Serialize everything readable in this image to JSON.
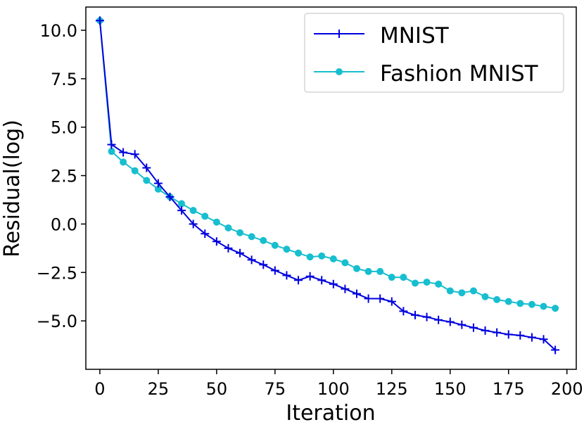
{
  "chart_data": {
    "type": "line",
    "xlabel": "Iteration",
    "ylabel": "Residual(log)",
    "xlim": [
      -6,
      204
    ],
    "ylim": [
      -7.5,
      11.2
    ],
    "xticks": [
      0,
      25,
      50,
      75,
      100,
      125,
      150,
      175,
      200
    ],
    "xtick_labels": [
      "0",
      "25",
      "50",
      "75",
      "100",
      "125",
      "150",
      "175",
      "200"
    ],
    "yticks": [
      -5.0,
      -2.5,
      0.0,
      2.5,
      5.0,
      7.5,
      10.0
    ],
    "ytick_labels": [
      "−5.0",
      "−2.5",
      "0.0",
      "2.5",
      "5.0",
      "7.5",
      "10.0"
    ],
    "grid": false,
    "legend_position": "top-right",
    "series": [
      {
        "name": "MNIST",
        "color": "#0000dd",
        "marker": "plus",
        "x": [
          0,
          5,
          10,
          15,
          20,
          25,
          30,
          35,
          40,
          45,
          50,
          55,
          60,
          65,
          70,
          75,
          80,
          85,
          90,
          95,
          100,
          105,
          110,
          115,
          120,
          125,
          130,
          135,
          140,
          145,
          150,
          155,
          160,
          165,
          170,
          175,
          180,
          185,
          190,
          195
        ],
        "y": [
          10.5,
          4.1,
          3.7,
          3.6,
          2.9,
          2.1,
          1.4,
          0.7,
          0.0,
          -0.5,
          -0.9,
          -1.25,
          -1.5,
          -1.85,
          -2.1,
          -2.4,
          -2.65,
          -2.9,
          -2.7,
          -2.9,
          -3.1,
          -3.35,
          -3.6,
          -3.85,
          -3.85,
          -4.0,
          -4.5,
          -4.7,
          -4.8,
          -4.95,
          -5.05,
          -5.2,
          -5.35,
          -5.5,
          -5.6,
          -5.7,
          -5.75,
          -5.85,
          -5.95,
          -6.5
        ]
      },
      {
        "name": "Fashion MNIST",
        "color": "#17becf",
        "marker": "circle",
        "x": [
          0,
          5,
          10,
          15,
          20,
          25,
          30,
          35,
          40,
          45,
          50,
          55,
          60,
          65,
          70,
          75,
          80,
          85,
          90,
          95,
          100,
          105,
          110,
          115,
          120,
          125,
          130,
          135,
          140,
          145,
          150,
          155,
          160,
          165,
          170,
          175,
          180,
          185,
          190,
          195
        ],
        "y": [
          10.5,
          3.75,
          3.2,
          2.75,
          2.25,
          1.8,
          1.4,
          1.05,
          0.7,
          0.4,
          0.1,
          -0.2,
          -0.45,
          -0.65,
          -0.85,
          -1.1,
          -1.3,
          -1.5,
          -1.7,
          -1.65,
          -1.8,
          -2.0,
          -2.3,
          -2.45,
          -2.45,
          -2.75,
          -2.75,
          -3.05,
          -3.0,
          -3.1,
          -3.45,
          -3.55,
          -3.45,
          -3.75,
          -3.9,
          -4.0,
          -4.1,
          -4.15,
          -4.25,
          -4.35
        ]
      }
    ]
  }
}
